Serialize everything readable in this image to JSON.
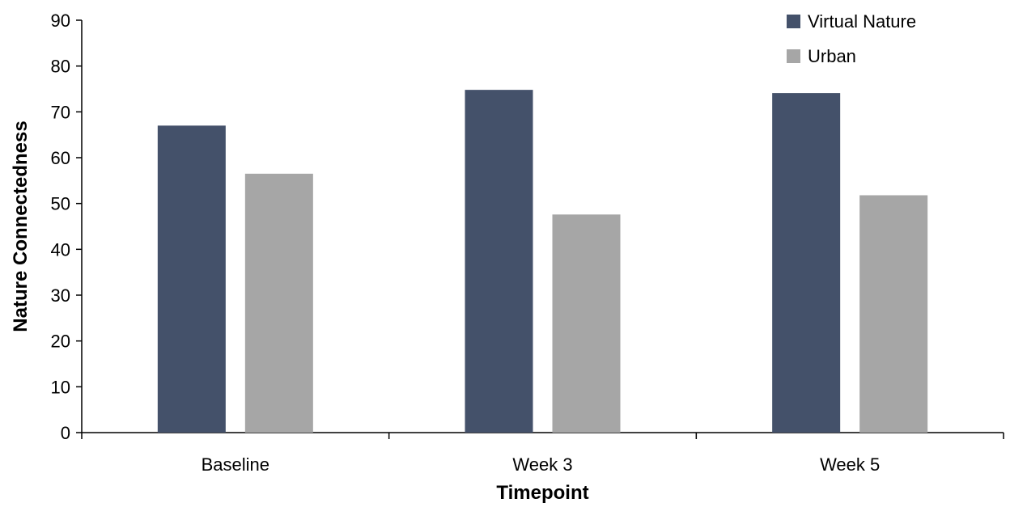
{
  "chart_data": {
    "type": "bar",
    "categories": [
      "Baseline",
      "Week 3",
      "Week 5"
    ],
    "series": [
      {
        "name": "Virtual Nature",
        "values": [
          67,
          74.8,
          74.1
        ],
        "color": "#44516a"
      },
      {
        "name": "Urban",
        "values": [
          56.5,
          47.6,
          51.8
        ],
        "color": "#a6a6a6"
      }
    ],
    "title": "",
    "xlabel": "Timepoint",
    "ylabel": "Nature Connectedness",
    "ylim": [
      0,
      90
    ],
    "yticks": [
      0,
      10,
      20,
      30,
      40,
      50,
      60,
      70,
      80,
      90
    ],
    "grid": false,
    "legend_position": "top-right"
  }
}
